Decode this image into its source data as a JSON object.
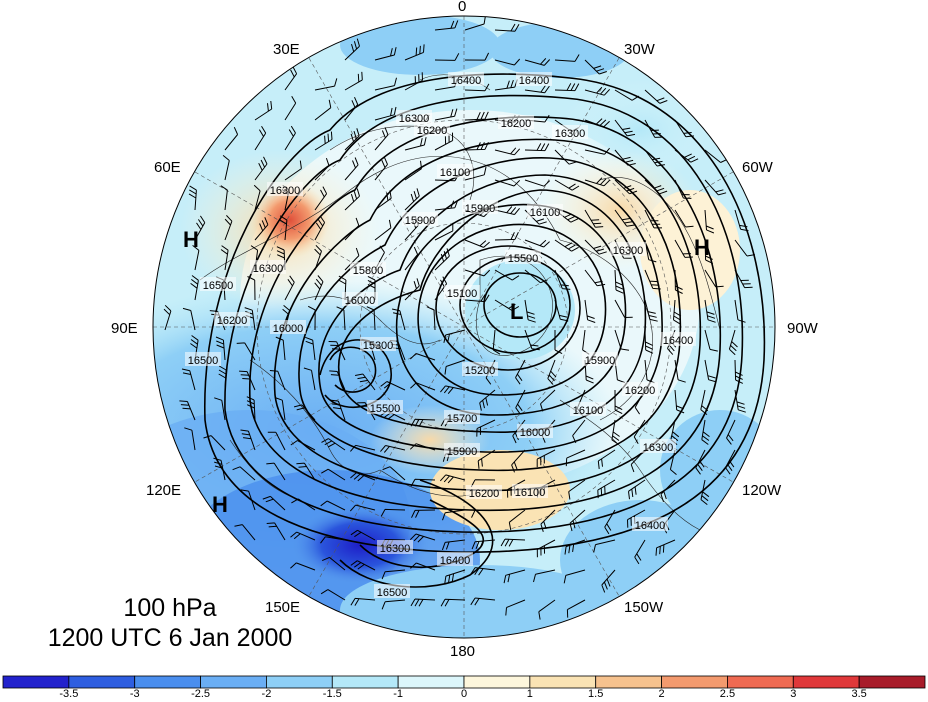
{
  "map": {
    "projection": "polar stereographic, North Pole centered",
    "level_label": "100 hPa",
    "time_label": "1200 UTC 6 Jan 2000",
    "longitude_labels": {
      "lon_0": "0",
      "lon_30e": "30E",
      "lon_30w": "30W",
      "lon_60e": "60E",
      "lon_60w": "60W",
      "lon_90e": "90E",
      "lon_90w": "90W",
      "lon_120e": "120E",
      "lon_120w": "120W",
      "lon_150e": "150E",
      "lon_150w": "150W",
      "lon_180": "180"
    },
    "pressure_centers": {
      "h_west": "H",
      "h_east": "H",
      "h_south": "H",
      "l_center": "L"
    },
    "contour_labels": [
      "16400",
      "16400",
      "16300",
      "16200",
      "16200",
      "16300",
      "16100",
      "16100",
      "15900",
      "15900",
      "15800",
      "15100",
      "15300",
      "15200",
      "15500",
      "15500",
      "15700",
      "15900",
      "16000",
      "16000",
      "16100",
      "15900",
      "16200",
      "16300",
      "16400",
      "16300",
      "16500",
      "16100",
      "16200",
      "16300",
      "16400",
      "16500",
      "16000",
      "16200",
      "16300",
      "16500",
      "16400",
      "16300"
    ],
    "colorbar": {
      "colors": [
        "#2222cc",
        "#2e5ee0",
        "#4a8eee",
        "#6aaef4",
        "#8ecff6",
        "#b4e8f8",
        "#dcf6fb",
        "#fdf6dc",
        "#fae3b4",
        "#f6c28e",
        "#f39a6e",
        "#ef6a52",
        "#e0383a",
        "#a81c2a"
      ],
      "ticks": [
        "-3.5",
        "-3",
        "-2.5",
        "-2",
        "-1.5",
        "-1",
        "0",
        "1",
        "1.5",
        "2",
        "2.5",
        "3",
        "3.5"
      ]
    }
  }
}
